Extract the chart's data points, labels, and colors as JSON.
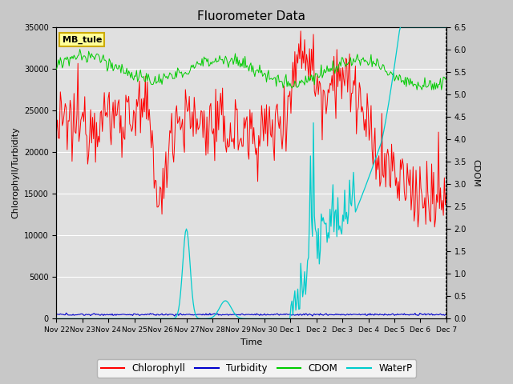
{
  "title": "Fluorometer Data",
  "xlabel": "Time",
  "ylabel_left": "Chlorophyll/Turbidity",
  "ylabel_right": "CDOM",
  "x_tick_labels": [
    "Nov 22",
    "Nov 23",
    "Nov 24",
    "Nov 25",
    "Nov 26",
    "Nov 27",
    "Nov 28",
    "Nov 29",
    "Nov 30",
    "Dec 1",
    "Dec 2",
    "Dec 3",
    "Dec 4",
    "Dec 5",
    "Dec 6",
    "Dec 7"
  ],
  "ylim_left": [
    0,
    35000
  ],
  "ylim_right": [
    0.0,
    6.5
  ],
  "yticks_left": [
    0,
    5000,
    10000,
    15000,
    20000,
    25000,
    30000,
    35000
  ],
  "yticks_right": [
    0.0,
    0.5,
    1.0,
    1.5,
    2.0,
    2.5,
    3.0,
    3.5,
    4.0,
    4.5,
    5.0,
    5.5,
    6.0,
    6.5
  ],
  "legend_labels": [
    "Chlorophyll",
    "Turbidity",
    "CDOM",
    "WaterP"
  ],
  "legend_colors": [
    "#ff0000",
    "#0000cc",
    "#00cc00",
    "#00cccc"
  ],
  "annotation_text": "MB_tule",
  "annotation_box_facecolor": "#ffff99",
  "annotation_box_edgecolor": "#ccaa00",
  "fig_facecolor": "#c8c8c8",
  "axes_facecolor": "#e0e0e0",
  "grid_color": "#ffffff",
  "num_points": 400,
  "days": 15
}
